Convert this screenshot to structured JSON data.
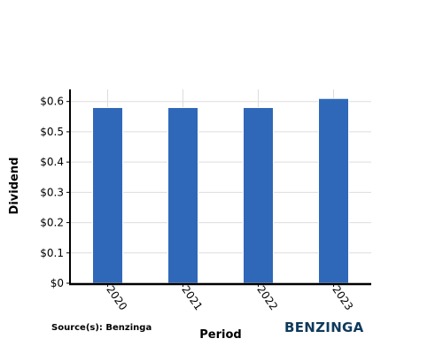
{
  "chart_data": {
    "type": "bar",
    "categories": [
      "2020",
      "2021",
      "2022",
      "2023"
    ],
    "values": [
      0.58,
      0.58,
      0.58,
      0.61
    ],
    "xlabel": "Period",
    "ylabel": "Dividend",
    "ylim": [
      0,
      0.64
    ],
    "yticks": [
      0,
      0.1,
      0.2,
      0.3,
      0.4,
      0.5,
      0.6
    ],
    "ytick_labels": [
      "$0",
      "$0.1",
      "$0.2",
      "$0.3",
      "$0.4",
      "$0.5",
      "$0.6"
    ],
    "grid": true,
    "bar_color": "#2f68b8",
    "grid_color": "#dddddd"
  },
  "footer": {
    "source": "Source(s): Benzinga",
    "brand": "BENZINGA",
    "brand_color": "#0e3a5c"
  }
}
